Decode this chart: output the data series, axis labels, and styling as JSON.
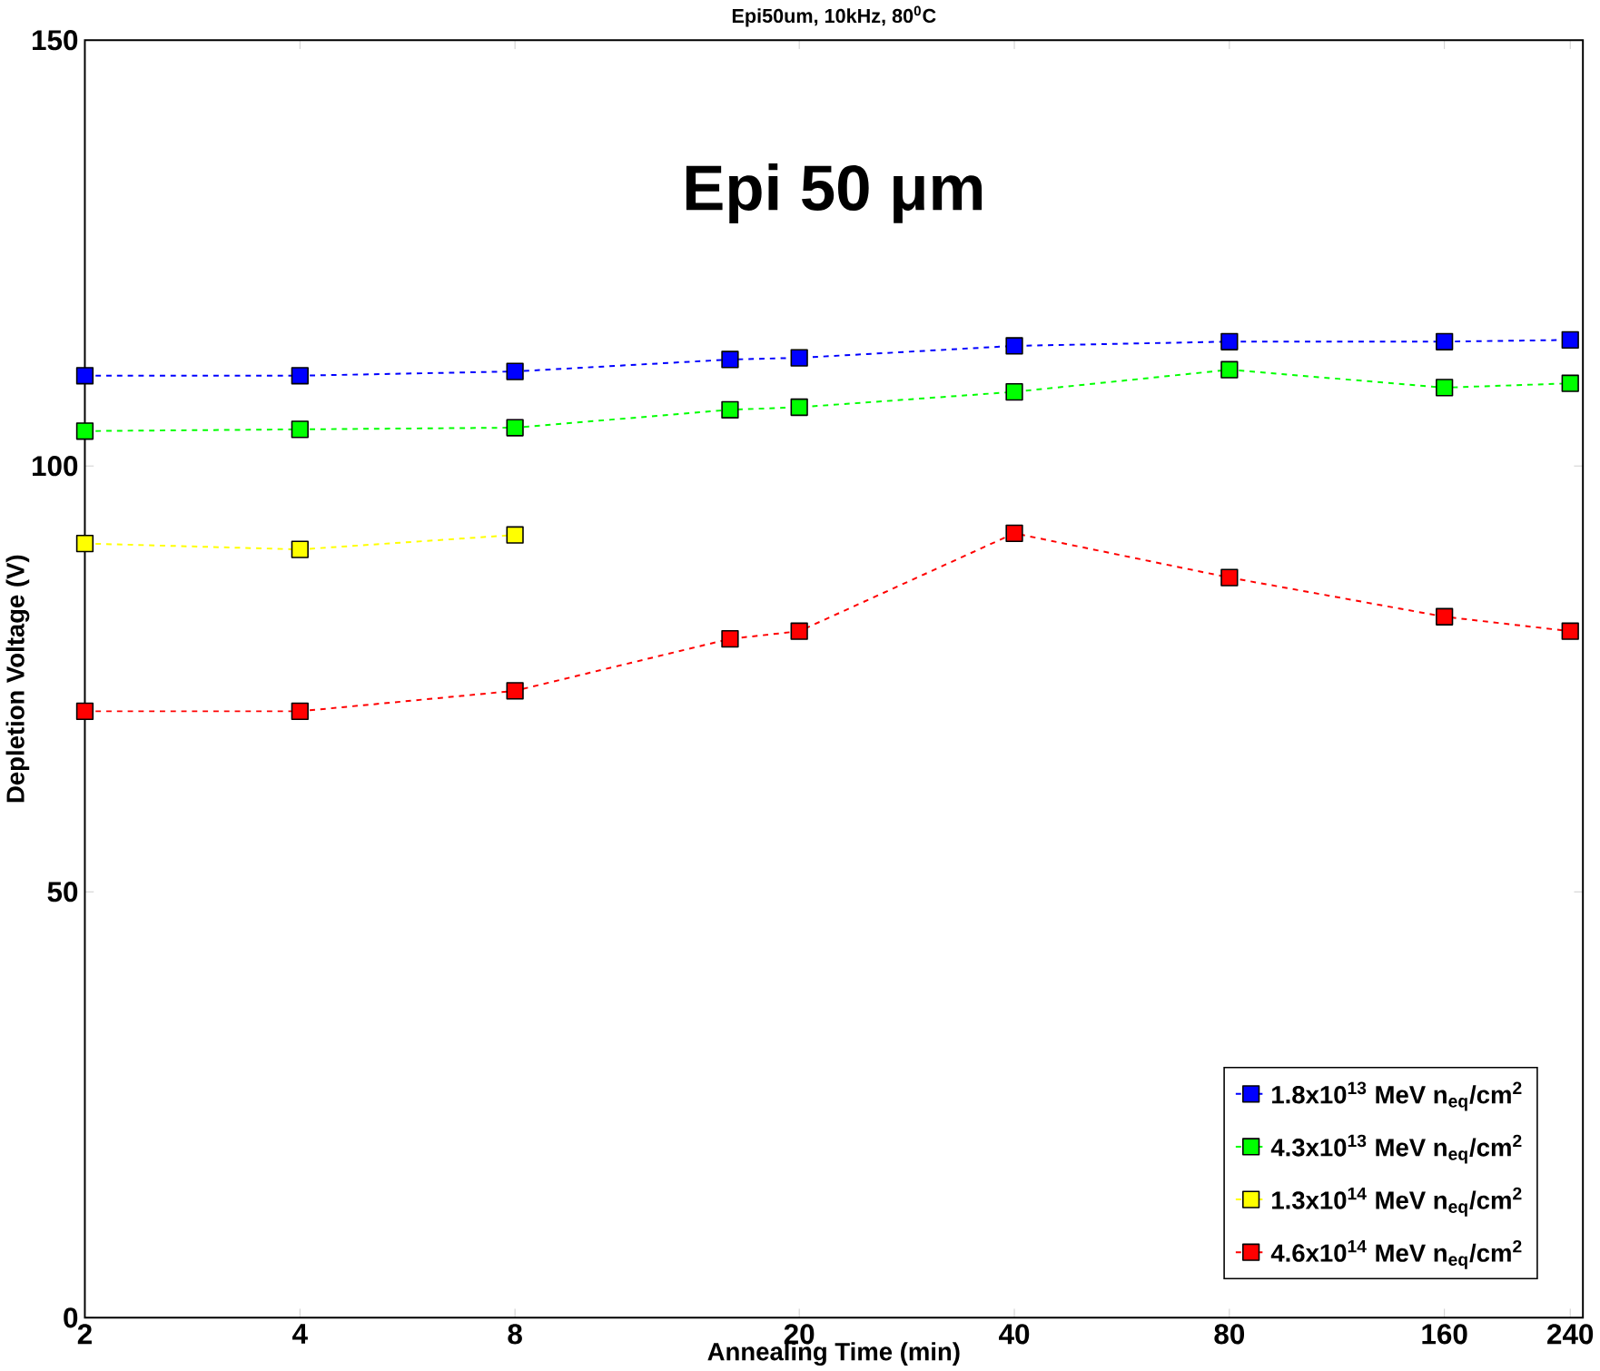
{
  "chart_data": {
    "type": "line",
    "title": "Epi50um, 10kHz, 80$^{0}$C",
    "xlabel": "Annealing Time (min)",
    "ylabel": "Depletion Voltage (V)",
    "annotations": [
      "Epi 50 μm"
    ],
    "x": [
      2,
      4,
      8,
      16,
      20,
      40,
      80,
      160,
      240
    ],
    "log": "x",
    "xlim": [
      2,
      250
    ],
    "xticks": [
      2,
      4,
      8,
      20,
      40,
      80,
      160,
      240
    ],
    "ylim": [
      0,
      150
    ],
    "yticks": [
      0,
      50,
      100,
      150
    ],
    "grid": false,
    "legend": "bottom right",
    "marker": "square",
    "line_style": "dashed",
    "series": [
      {
        "name": "1.8x10$^{13}$ MeV n$_{eq}$/cm$^{2}$",
        "color": "#0000ff",
        "values": [
          110.6,
          110.6,
          111.1,
          112.5,
          112.7,
          114.1,
          114.6,
          114.6,
          114.8
        ]
      },
      {
        "name": "4.3x10$^{13}$ MeV n$_{eq}$/cm$^{2}$",
        "color": "#00ff00",
        "values": [
          104.1,
          104.3,
          104.5,
          106.6,
          106.9,
          108.7,
          111.3,
          109.2,
          109.7
        ]
      },
      {
        "name": "1.3x10$^{14}$ MeV n$_{eq}$/cm$^{2}$",
        "color": "#ffff00",
        "values": [
          90.9,
          90.2,
          91.9,
          null,
          null,
          null,
          null,
          null,
          null
        ]
      },
      {
        "name": "4.6x10$^{14}$ MeV n$_{eq}$/cm$^{2}$",
        "color": "#ff0000",
        "values": [
          71.2,
          71.2,
          73.6,
          79.7,
          80.6,
          92.1,
          86.9,
          82.3,
          80.6
        ]
      }
    ]
  }
}
